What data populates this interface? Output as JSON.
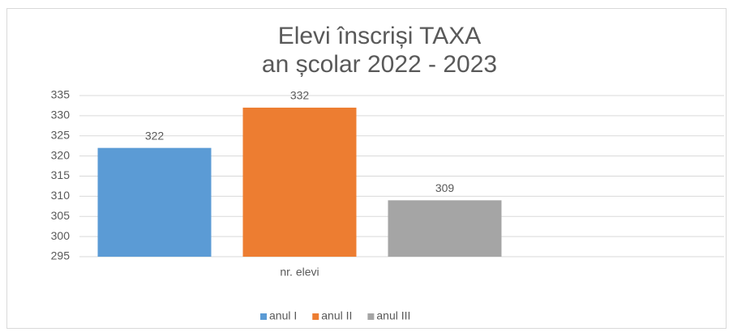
{
  "chart_data": {
    "type": "bar",
    "title": [
      "Elevi înscriși TAXA",
      "an școlar 2022 - 2023"
    ],
    "categories": [
      "nr. elevi"
    ],
    "series": [
      {
        "name": "anul I",
        "color": "#5b9bd5",
        "values": [
          322
        ]
      },
      {
        "name": "anul II",
        "color": "#ed7d31",
        "values": [
          332
        ]
      },
      {
        "name": "anul III",
        "color": "#a5a5a5",
        "values": [
          309
        ]
      }
    ],
    "ylim": [
      295,
      335
    ],
    "yticks": [
      295,
      300,
      305,
      310,
      315,
      320,
      325,
      330,
      335
    ],
    "grid": true,
    "data_labels": true,
    "legend": "bottom"
  }
}
